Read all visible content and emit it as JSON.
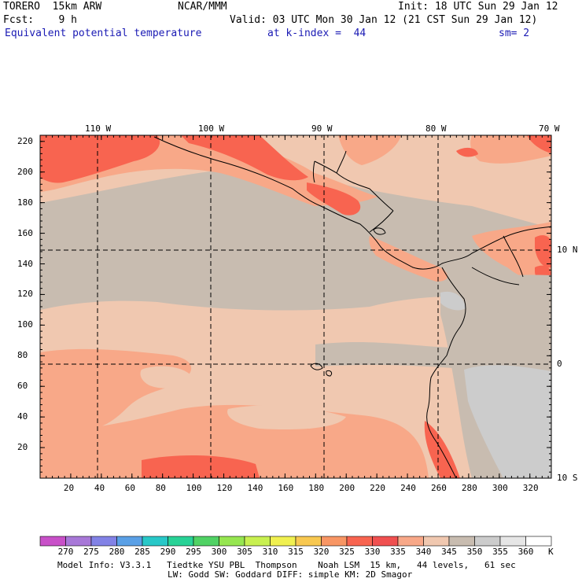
{
  "header": {
    "model": "TORERO  15km ARW",
    "center": "NCAR/MMM",
    "init": "Init: 18 UTC Sun 29 Jan 12",
    "fcst": "Fcst:    9 h",
    "valid": "Valid: 03 UTC Mon 30 Jan 12 (21 CST Sun 29 Jan 12)",
    "field": "Equivalent potential temperature",
    "level": "at k-index =  44",
    "smooth": "sm= 2"
  },
  "map": {
    "lon_labels": [
      "110 W",
      "100 W",
      "90 W",
      "80 W",
      "70 W"
    ],
    "lat_labels": [
      "10 N",
      "0",
      "10 S"
    ],
    "y_ticks": [
      "220",
      "200",
      "180",
      "160",
      "140",
      "120",
      "100",
      "80",
      "60",
      "40",
      "20"
    ],
    "x_ticks": [
      "20",
      "40",
      "60",
      "80",
      "100",
      "120",
      "140",
      "160",
      "180",
      "200",
      "220",
      "240",
      "260",
      "280",
      "300",
      "320"
    ]
  },
  "colorbar": {
    "labels": [
      "270",
      "275",
      "280",
      "285",
      "290",
      "295",
      "300",
      "305",
      "310",
      "315",
      "320",
      "325",
      "330",
      "335",
      "340",
      "345",
      "350",
      "355",
      "360"
    ],
    "unit": "K",
    "colors": [
      "#c850c8",
      "#a878d8",
      "#8282e6",
      "#5aa0e6",
      "#28c8c8",
      "#28d296",
      "#50d264",
      "#96e650",
      "#c8f050",
      "#f0f050",
      "#f8c850",
      "#f89664",
      "#f86450",
      "#f05050",
      "#f8a888",
      "#f0c8b0",
      "#c8bcb0",
      "#cccccc",
      "#e6e6e6",
      "#ffffff"
    ]
  },
  "footer": {
    "line1": "Model Info: V3.3.1   Tiedtke YSU PBL  Thompson    Noah LSM  15 km,   44 levels,   61 sec",
    "line2": "LW: Godd SW: Goddard DIFF: simple KM: 2D Smagor"
  }
}
